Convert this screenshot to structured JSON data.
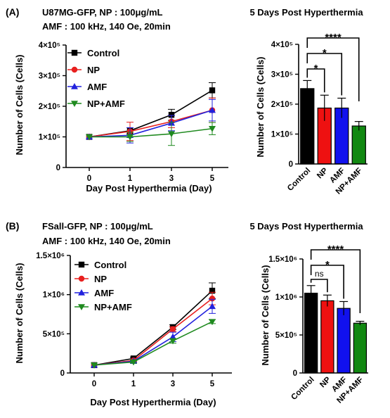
{
  "panels": [
    {
      "label": "(A)",
      "conditions": [
        "U87MG-GFP, NP : 100μg/mL",
        "AMF : 100 kHz, 140 Oe, 20min"
      ],
      "line": {
        "type": "line",
        "xlabel": "Day Post Hyperthermia (Day)",
        "ylabel": "Number of Cells (Cells)",
        "x": [
          0,
          1,
          3,
          5
        ],
        "x_ticks": [
          "0",
          "1",
          "3",
          "5"
        ],
        "y_ticks": [
          {
            "v": 0,
            "label": "0"
          },
          {
            "v": 100000,
            "label": "1×10⁵"
          },
          {
            "v": 200000,
            "label": "2×10⁵"
          },
          {
            "v": 300000,
            "label": "3×10⁵"
          },
          {
            "v": 400000,
            "label": "4×10⁵"
          }
        ],
        "ylim": [
          0,
          400000
        ],
        "legend_position": "top-left",
        "series": [
          {
            "name": "Control",
            "color": "#000000",
            "marker": "square",
            "values": [
              100000,
              120000,
              172000,
              252000
            ],
            "errors": [
              0,
              10000,
              18000,
              25000
            ]
          },
          {
            "name": "NP",
            "color": "#e8201f",
            "marker": "circle",
            "values": [
              100000,
              118000,
              150000,
              187000
            ],
            "errors": [
              0,
              30000,
              20000,
              40000
            ]
          },
          {
            "name": "AMF",
            "color": "#2222dd",
            "marker": "triangle-up",
            "values": [
              100000,
              105000,
              145000,
              187000
            ],
            "errors": [
              0,
              25000,
              25000,
              35000
            ]
          },
          {
            "name": "NP+AMF",
            "color": "#1f8a1f",
            "marker": "triangle-down",
            "values": [
              100000,
              100000,
              110000,
              127000
            ],
            "errors": [
              0,
              15000,
              38000,
              20000
            ]
          }
        ]
      },
      "bar": {
        "type": "bar",
        "title": "5 Days Post Hyperthermia",
        "ylabel": "Number of Cells (Cells)",
        "categories": [
          "Control",
          "NP",
          "AMF",
          "NP+AMF"
        ],
        "values": [
          252000,
          187000,
          187000,
          127000
        ],
        "errors": [
          27000,
          43000,
          33000,
          15000
        ],
        "colors": [
          "#000000",
          "#ee1111",
          "#1111ee",
          "#118811"
        ],
        "y_ticks": [
          {
            "v": 0,
            "label": "0"
          },
          {
            "v": 100000,
            "label": "1×10⁵"
          },
          {
            "v": 200000,
            "label": "2×10⁵"
          },
          {
            "v": 300000,
            "label": "3×10⁵"
          },
          {
            "v": 400000,
            "label": "4×10⁵"
          }
        ],
        "ylim": [
          0,
          400000
        ],
        "significance": [
          {
            "from": 0,
            "to": 1,
            "label": "*"
          },
          {
            "from": 0,
            "to": 2,
            "label": "*"
          },
          {
            "from": 0,
            "to": 3,
            "label": "****"
          }
        ]
      }
    },
    {
      "label": "(B)",
      "conditions": [
        "FSall-GFP, NP : 100μg/mL",
        "AMF : 100 kHz, 140 Oe, 20min"
      ],
      "line": {
        "type": "line",
        "xlabel": "Day Post Hyperthermia (Day)",
        "ylabel": "Number of Cells (Cells)",
        "x": [
          0,
          1,
          3,
          5
        ],
        "x_ticks": [
          "0",
          "1",
          "3",
          "5"
        ],
        "y_ticks": [
          {
            "v": 0,
            "label": "0"
          },
          {
            "v": 500000,
            "label": "5×10⁵"
          },
          {
            "v": 1000000,
            "label": "1×10⁶"
          },
          {
            "v": 1500000,
            "label": "1.5×10⁶"
          }
        ],
        "ylim": [
          0,
          1500000
        ],
        "legend_position": "top-left",
        "series": [
          {
            "name": "Control",
            "color": "#000000",
            "marker": "square",
            "values": [
              100000,
              185000,
              585000,
              1050000
            ],
            "errors": [
              0,
              15000,
              30000,
              100000
            ]
          },
          {
            "name": "NP",
            "color": "#e8201f",
            "marker": "circle",
            "values": [
              100000,
              160000,
              560000,
              950000
            ],
            "errors": [
              0,
              15000,
              30000,
              80000
            ]
          },
          {
            "name": "AMF",
            "color": "#2222dd",
            "marker": "triangle-up",
            "values": [
              100000,
              150000,
              460000,
              850000
            ],
            "errors": [
              0,
              15000,
              60000,
              90000
            ]
          },
          {
            "name": "NP+AMF",
            "color": "#1f8a1f",
            "marker": "triangle-down",
            "values": [
              100000,
              140000,
              410000,
              655000
            ],
            "errors": [
              0,
              15000,
              30000,
              25000
            ]
          }
        ]
      },
      "bar": {
        "type": "bar",
        "title": "5 Days Post Hyperthermia",
        "ylabel": "Number of Cells (Cells)",
        "categories": [
          "Control",
          "NP",
          "AMF",
          "NP+AMF"
        ],
        "values": [
          1050000,
          950000,
          850000,
          655000
        ],
        "errors": [
          100000,
          75000,
          90000,
          25000
        ],
        "colors": [
          "#000000",
          "#ee1111",
          "#1111ee",
          "#118811"
        ],
        "y_ticks": [
          {
            "v": 0,
            "label": "0"
          },
          {
            "v": 500000,
            "label": "5×10⁵"
          },
          {
            "v": 1000000,
            "label": "1×10⁶"
          },
          {
            "v": 1500000,
            "label": "1.5×10⁶"
          }
        ],
        "ylim": [
          0,
          1500000
        ],
        "significance": [
          {
            "from": 0,
            "to": 1,
            "label": "ns"
          },
          {
            "from": 0,
            "to": 2,
            "label": "*"
          },
          {
            "from": 0,
            "to": 3,
            "label": "****"
          }
        ]
      }
    }
  ]
}
